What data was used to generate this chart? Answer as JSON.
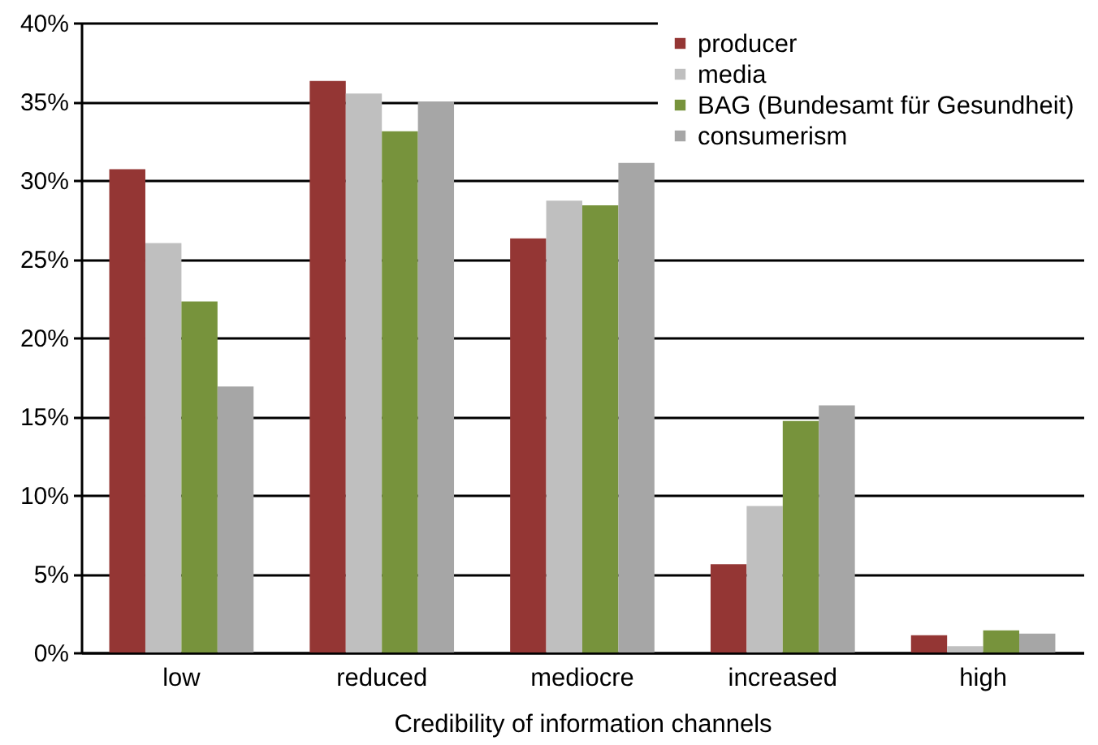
{
  "chart_data": {
    "type": "bar",
    "xlabel": "Credibility of information channels",
    "categories": [
      "low",
      "reduced",
      "mediocre",
      "increased",
      "high"
    ],
    "series": [
      {
        "name": "producer",
        "color": "#943634",
        "values": [
          30.7,
          36.3,
          26.3,
          5.6,
          1.1
        ]
      },
      {
        "name": "media",
        "color": "#bfbfbf",
        "values": [
          26.0,
          35.5,
          28.7,
          9.3,
          0.4
        ]
      },
      {
        "name": "BAG (Bundesamt für Gesundheit)",
        "color": "#77933c",
        "values": [
          22.3,
          33.1,
          28.4,
          14.7,
          1.4
        ]
      },
      {
        "name": "consumerism",
        "color": "#a6a6a6",
        "values": [
          16.9,
          35.0,
          31.1,
          15.7,
          1.2
        ]
      }
    ],
    "ylim": [
      0,
      40
    ],
    "yticks": [
      {
        "value": 0,
        "label": "0%"
      },
      {
        "value": 5,
        "label": "5%"
      },
      {
        "value": 10,
        "label": "10%"
      },
      {
        "value": 15,
        "label": "15%"
      },
      {
        "value": 20,
        "label": "20%"
      },
      {
        "value": 25,
        "label": "25%"
      },
      {
        "value": 30,
        "label": "30%"
      },
      {
        "value": 35,
        "label": "35%"
      },
      {
        "value": 40,
        "label": "40%"
      }
    ],
    "grid": "y",
    "legend": "top right"
  }
}
